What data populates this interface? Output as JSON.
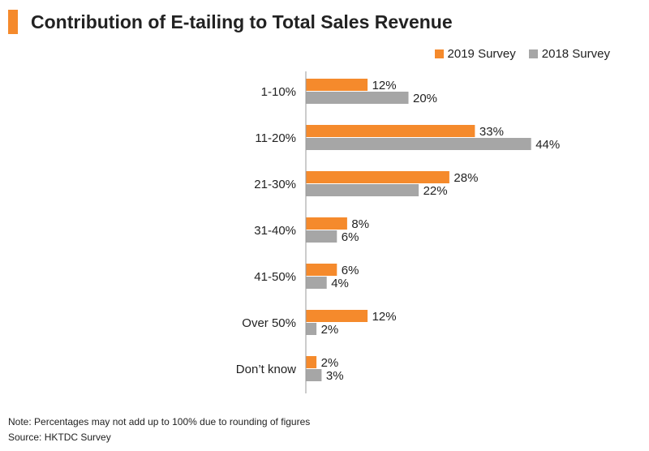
{
  "title": "Contribution of E-tailing to Total Sales Revenue",
  "colors": {
    "accent": "#f58a2c",
    "series_2019": "#f58a2c",
    "series_2018": "#a6a6a6"
  },
  "chart_data": {
    "type": "bar",
    "orientation": "horizontal",
    "title": "Contribution of E-tailing to Total Sales Revenue",
    "categories": [
      "1-10%",
      "11-20%",
      "21-30%",
      "31-40%",
      "41-50%",
      "Over 50%",
      "Don’t know"
    ],
    "series": [
      {
        "name": "2019 Survey",
        "values": [
          12,
          33,
          28,
          8,
          6,
          12,
          2
        ],
        "color": "#f58a2c"
      },
      {
        "name": "2018 Survey",
        "values": [
          20,
          44,
          22,
          6,
          4,
          2,
          3
        ],
        "color": "#a6a6a6"
      }
    ],
    "value_suffix": "%",
    "xlim": [
      0,
      50
    ],
    "grid": false,
    "legend_position": "top-right",
    "xlabel": "",
    "ylabel": ""
  },
  "footnotes": {
    "note": "Note: Percentages may not add up to 100% due to rounding of figures",
    "source": "Source: HKTDC Survey"
  }
}
